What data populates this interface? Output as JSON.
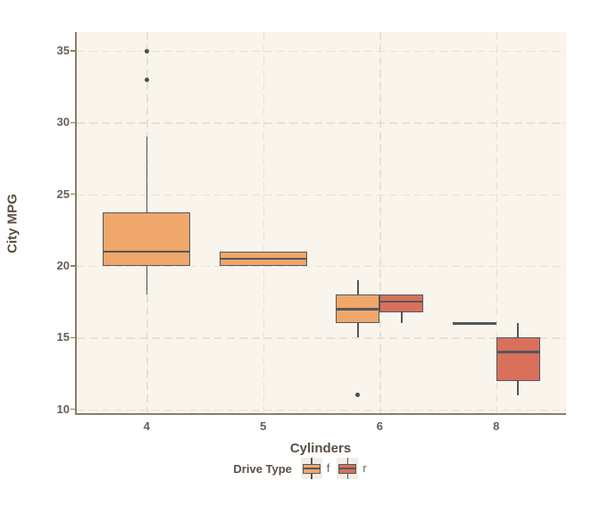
{
  "chart_data": {
    "type": "boxplot",
    "xlabel": "Cylinders",
    "ylabel": "City MPG",
    "x_categories": [
      "4",
      "5",
      "6",
      "8"
    ],
    "y_ticks": [
      10,
      15,
      20,
      25,
      30,
      35
    ],
    "ylim": [
      9.8,
      36.3
    ],
    "grid": "dashed",
    "legend": {
      "title": "Drive Type",
      "position": "bottom",
      "entries": [
        {
          "label": "f",
          "color": "#efa76b"
        },
        {
          "label": "r",
          "color": "#d9705c"
        }
      ]
    },
    "series": [
      {
        "name": "f",
        "color": "#efa76b",
        "boxes": [
          {
            "category": "4",
            "low": 18,
            "q1": 20,
            "median": 21,
            "q3": 23.75,
            "high": 29,
            "outliers": [
              33,
              35
            ]
          },
          {
            "category": "5",
            "low": 20,
            "q1": 20,
            "median": 20.5,
            "q3": 21,
            "high": 21,
            "outliers": []
          },
          {
            "category": "6",
            "low": 15,
            "q1": 16,
            "median": 17,
            "q3": 18,
            "high": 19,
            "outliers": [
              11
            ]
          },
          {
            "category": "8",
            "low": 16,
            "q1": 16,
            "median": 16,
            "q3": 16,
            "high": 16,
            "outliers": []
          }
        ]
      },
      {
        "name": "r",
        "color": "#d9705c",
        "boxes": [
          {
            "category": "6",
            "low": 16,
            "q1": 16.75,
            "median": 17.5,
            "q3": 18,
            "high": 18,
            "outliers": []
          },
          {
            "category": "8",
            "low": 11,
            "q1": 12,
            "median": 14,
            "q3": 15,
            "high": 16,
            "outliers": []
          }
        ]
      }
    ]
  }
}
